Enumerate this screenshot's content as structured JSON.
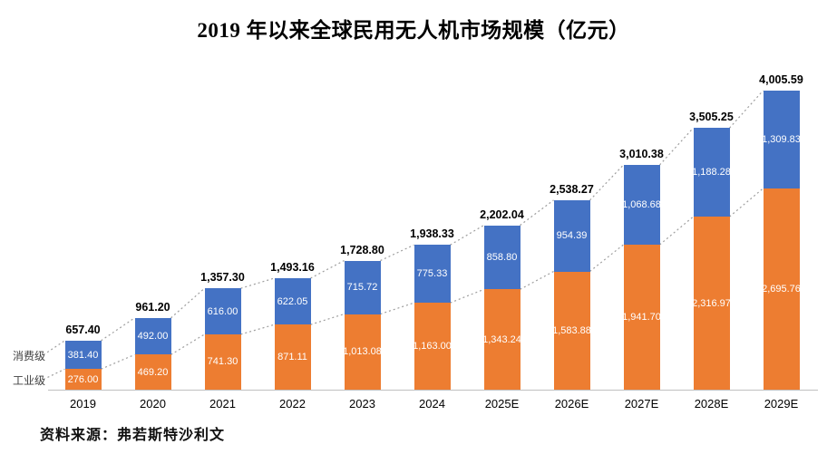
{
  "page": {
    "title": "2019 年以来全球民用无人机市场规模（亿元）",
    "source": "资料来源：弗若斯特沙利文"
  },
  "legend": {
    "consumer_label": "消费级",
    "industrial_label": "工业级"
  },
  "colors": {
    "consumer": "#4472C4",
    "industrial": "#ED7D31",
    "connector": "#9E9E9E",
    "axis": "#BFBFBF",
    "title_text": "#000000",
    "value_text_on_bar": "#FFFFFF"
  },
  "chart_data": {
    "type": "bar",
    "stacked": true,
    "title": "2019 年以来全球民用无人机市场规模（亿元）",
    "unit": "亿元",
    "grid": false,
    "value_labels": "inside-segments-and-total-above",
    "connector_lines": true,
    "categories": [
      "2019",
      "2020",
      "2021",
      "2022",
      "2023",
      "2024",
      "2025E",
      "2026E",
      "2027E",
      "2028E",
      "2029E"
    ],
    "series": [
      {
        "name": "工业级",
        "color": "#ED7D31",
        "position": "bottom",
        "values": [
          276.0,
          469.2,
          741.3,
          871.11,
          1013.08,
          1163.0,
          1343.24,
          1583.88,
          1941.7,
          2316.97,
          2695.76
        ]
      },
      {
        "name": "消费级",
        "color": "#4472C4",
        "position": "top",
        "values": [
          381.4,
          492.0,
          616.0,
          622.05,
          715.72,
          775.33,
          858.8,
          954.39,
          1068.68,
          1188.28,
          1309.83
        ]
      }
    ],
    "totals": [
      657.4,
      961.2,
      1357.3,
      1493.16,
      1728.8,
      1938.33,
      2202.04,
      2538.27,
      3010.38,
      3505.25,
      4005.59
    ],
    "ylim": [
      0,
      4200
    ]
  }
}
